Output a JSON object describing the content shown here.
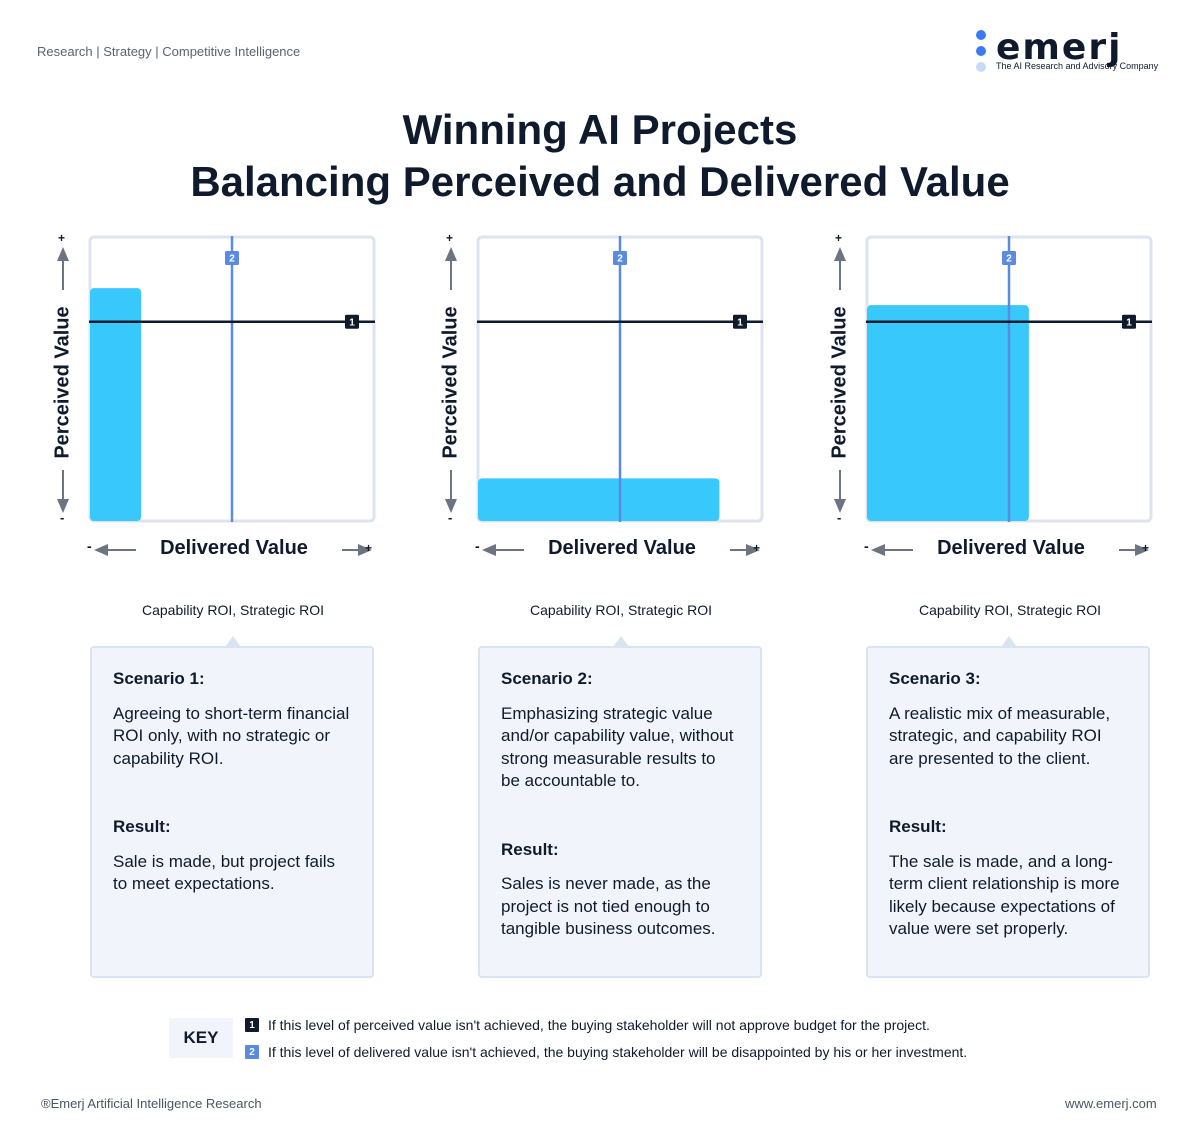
{
  "header": {
    "tagline": "Research | Strategy | Competitive Intelligence",
    "logo_word": "emerj",
    "logo_subtitle": "The AI Research and Advisory Company"
  },
  "title": {
    "line1": "Winning AI Projects",
    "line2": "Balancing Perceived and Delivered Value"
  },
  "axes": {
    "y_label": "Perceived Value",
    "x_label": "Delivered Value",
    "plus": "+",
    "minus": "-"
  },
  "markers": {
    "perceived": "1",
    "delivered": "2"
  },
  "chart_data": [
    {
      "type": "bar",
      "delivered_value": 0.18,
      "perceived_value": 0.82,
      "perceived_threshold": 0.7,
      "delivered_threshold": 0.5
    },
    {
      "type": "bar",
      "delivered_value": 0.85,
      "perceived_value": 0.15,
      "perceived_threshold": 0.7,
      "delivered_threshold": 0.5
    },
    {
      "type": "bar",
      "delivered_value": 0.57,
      "perceived_value": 0.76,
      "perceived_threshold": 0.7,
      "delivered_threshold": 0.5
    }
  ],
  "roi_caption": "Capability ROI, Strategic ROI",
  "scenarios": [
    {
      "heading": "Scenario 1:",
      "description": "Agreeing to short-term financial ROI only, with no strategic or capability ROI.",
      "result_heading": "Result:",
      "result": "Sale is made, but project fails to meet expectations."
    },
    {
      "heading": "Scenario 2:",
      "description": "Emphasizing strategic value and/or capability value, without strong measurable results to be accountable to.",
      "result_heading": "Result:",
      "result": "Sales is never made, as the project is not tied enough to tangible business outcomes."
    },
    {
      "heading": "Scenario 3:",
      "description": "A realistic mix of measurable, strategic, and capability ROI are presented to the client.",
      "result_heading": "Result:",
      "result": "The sale is made, and a long-term client relationship is more likely because expectations of value were set properly."
    }
  ],
  "key": {
    "label": "KEY",
    "item1": "If this level of perceived value isn't achieved, the buying stakeholder will not approve budget for the project.",
    "item2": "If this level of delivered value isn't achieved, the buying stakeholder will be disappointed by his or her investment."
  },
  "footer": {
    "left": "®Emerj Artificial Intelligence Research",
    "right": "www.emerj.com"
  },
  "colors": {
    "bar": "#38c8fb",
    "delivered_line": "#5b8be0",
    "perceived_line": "#0f1b2d",
    "frame": "#dde4ef",
    "card_bg": "#f1f5fb"
  }
}
